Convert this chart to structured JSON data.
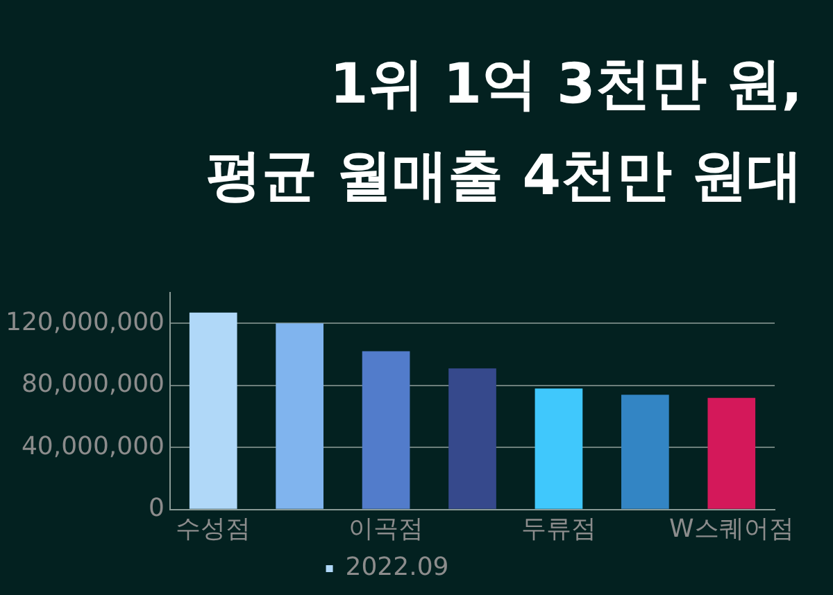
{
  "chart_data": {
    "type": "bar",
    "title": "1위 1억 3천만 원,\n평균 월매출 4천만 원대",
    "categories": [
      "수성점",
      null,
      "이곡점",
      null,
      "두류점",
      null,
      "W스퀘어점"
    ],
    "series": [
      {
        "name": "2022.09",
        "colors": [
          "#b0d8f8",
          "#80b4ee",
          "#527ccb",
          "#36498c",
          "#40c8fc",
          "#3385c4",
          "#d4185a"
        ],
        "values": [
          127000000,
          120000000,
          102000000,
          91000000,
          78000000,
          74000000,
          72000000
        ]
      }
    ],
    "ylim": [
      0,
      140000000
    ],
    "yticks": [
      0,
      {
        "value": 40000000,
        "label": "40,000,000"
      },
      {
        "value": 80000000,
        "label": "80,000,000"
      },
      {
        "value": 120000000,
        "label": "120,000,000"
      }
    ],
    "grid": "y",
    "legend": "bottom"
  }
}
